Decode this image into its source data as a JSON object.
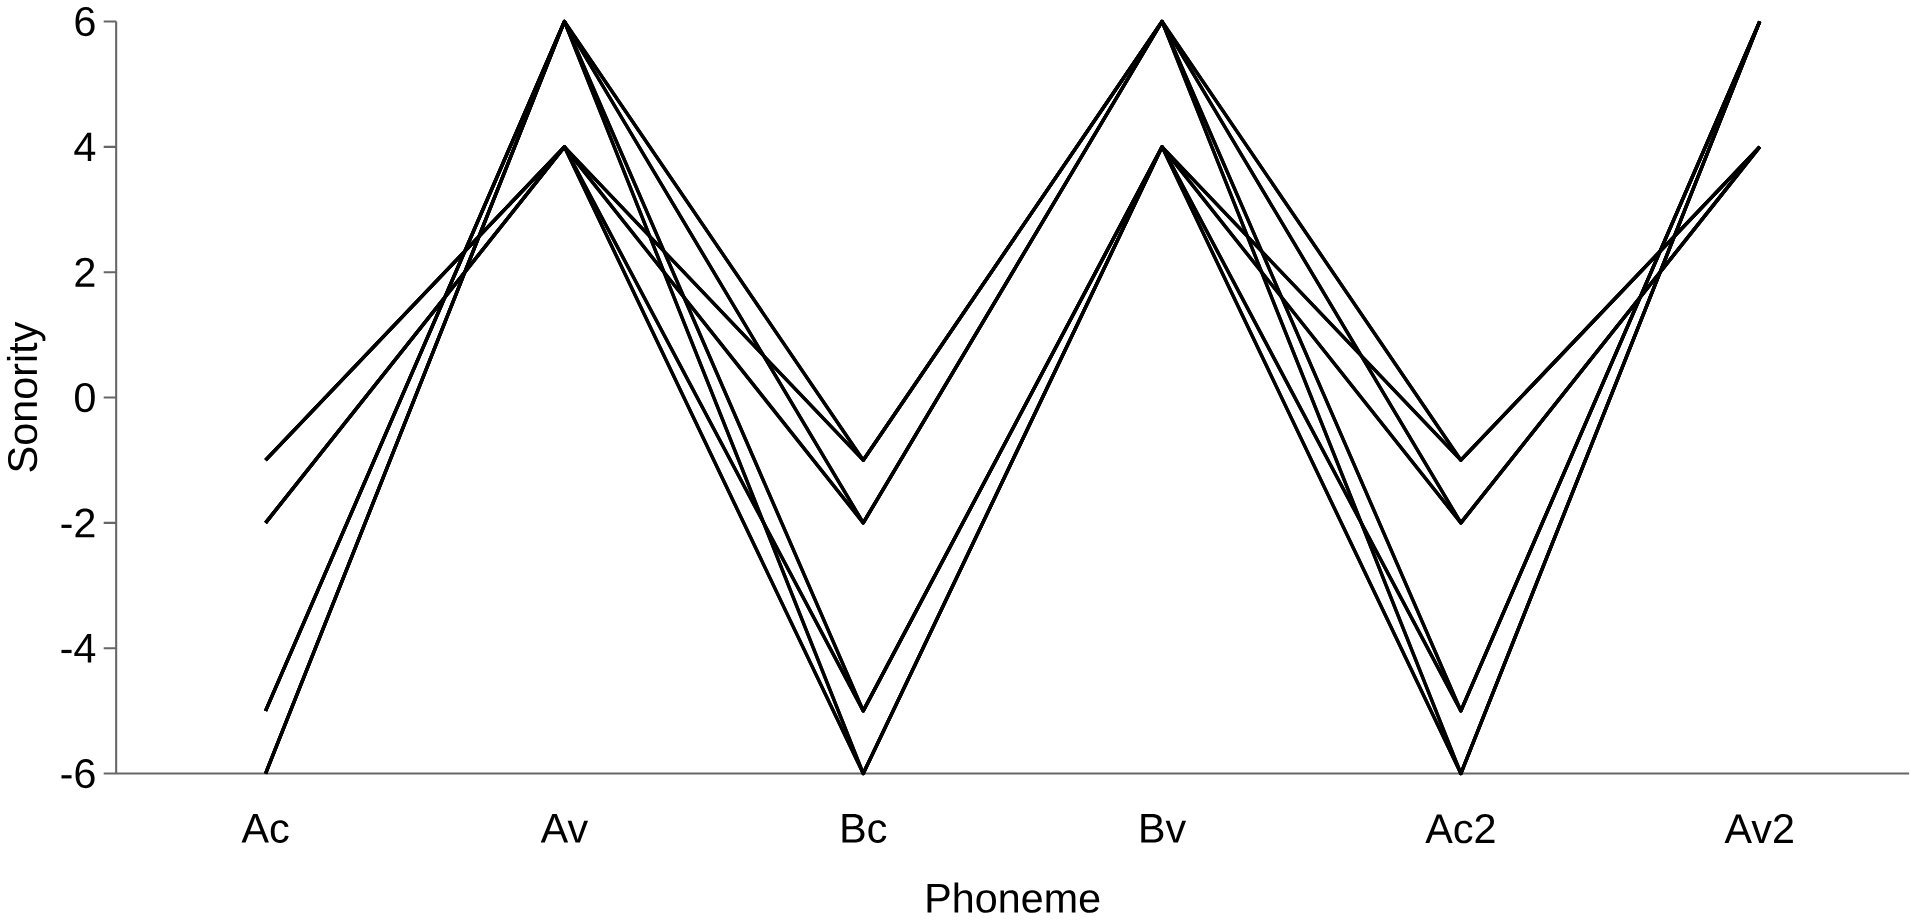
{
  "chart_data": {
    "type": "line",
    "xlabel": "Phoneme",
    "ylabel": "Sonority",
    "categories": [
      "Ac",
      "Av",
      "Bc",
      "Bv",
      "Ac2",
      "Av2"
    ],
    "ylim": [
      -6,
      6
    ],
    "yticks": [
      -6,
      -4,
      -2,
      0,
      2,
      4,
      6
    ],
    "grid": false,
    "legend": false,
    "marker": "none",
    "line_style": "solid",
    "series": [
      {
        "color": "#000000",
        "values": [
          -1,
          4,
          -1,
          6,
          -1,
          4
        ]
      },
      {
        "color": "#000000",
        "values": [
          -1,
          4,
          -2,
          6,
          -1,
          4
        ]
      },
      {
        "color": "#000000",
        "values": [
          -1,
          4,
          -5,
          4,
          -1,
          4
        ]
      },
      {
        "color": "#000000",
        "values": [
          -1,
          4,
          -6,
          4,
          -1,
          4
        ]
      },
      {
        "color": "#000000",
        "values": [
          -2,
          4,
          -1,
          6,
          -2,
          4
        ]
      },
      {
        "color": "#000000",
        "values": [
          -2,
          4,
          -2,
          6,
          -2,
          4
        ]
      },
      {
        "color": "#000000",
        "values": [
          -2,
          4,
          -5,
          4,
          -2,
          4
        ]
      },
      {
        "color": "#000000",
        "values": [
          -2,
          4,
          -6,
          4,
          -2,
          4
        ]
      },
      {
        "color": "#000000",
        "values": [
          -5,
          6,
          -1,
          6,
          -5,
          6
        ]
      },
      {
        "color": "#000000",
        "values": [
          -5,
          6,
          -2,
          6,
          -5,
          6
        ]
      },
      {
        "color": "#000000",
        "values": [
          -5,
          6,
          -5,
          4,
          -5,
          6
        ]
      },
      {
        "color": "#000000",
        "values": [
          -5,
          6,
          -6,
          4,
          -5,
          6
        ]
      },
      {
        "color": "#000000",
        "values": [
          -6,
          6,
          -1,
          6,
          -6,
          6
        ]
      },
      {
        "color": "#000000",
        "values": [
          -6,
          6,
          -2,
          6,
          -6,
          6
        ]
      },
      {
        "color": "#000000",
        "values": [
          -6,
          6,
          -5,
          4,
          -6,
          6
        ]
      },
      {
        "color": "#000000",
        "values": [
          -6,
          6,
          -6,
          4,
          -6,
          6
        ]
      }
    ]
  }
}
